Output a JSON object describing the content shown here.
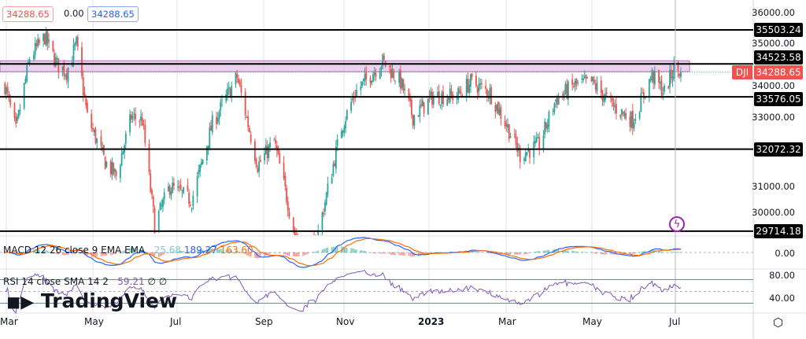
{
  "header": {
    "open_price": "34288.65",
    "change": "0.00",
    "close_price": "34288.65"
  },
  "symbol": "DJI",
  "last_price": "34288.65",
  "colors": {
    "up": "#26a69a",
    "down": "#ef5350",
    "macd": "#2962ff",
    "signal": "#ff6d00",
    "rsi": "#7e57c2",
    "zone": "#e1bee7"
  },
  "macd": {
    "label": "MACD 12 26 close 9 EMA EMA",
    "hist": "25.68",
    "macd": "189.27",
    "signal": "163.60"
  },
  "rsi": {
    "label": "RSI 14 close SMA 14 2",
    "value": "59.21",
    "ma1": "∅",
    "ma2": "∅"
  },
  "watermark": "TradingView",
  "chart_data": {
    "type": "candlestick",
    "ylim": [
      28700,
      36300
    ],
    "y_ticks": [
      "36000.00",
      "35000.00",
      "34000.00",
      "33000.00",
      "31000.00",
      "30000.00"
    ],
    "x_ticks": [
      "Mar",
      "May",
      "Jul",
      "Sep",
      "Nov",
      "2023",
      "Mar",
      "May",
      "Jul"
    ],
    "levels": [
      "35503.24",
      "34523.58",
      "33576.05",
      "32072.32",
      "29714.18"
    ],
    "resistance_zone": [
      34300,
      34523.58
    ],
    "macd_ticks": [
      "0.00"
    ],
    "rsi_ticks": [
      "80.00",
      "40.00"
    ],
    "approx_closes": [
      [
        "2022-02-28",
        33900
      ],
      [
        "2022-03-08",
        32600
      ],
      [
        "2022-03-18",
        34700
      ],
      [
        "2022-03-29",
        35300
      ],
      [
        "2022-04-07",
        34500
      ],
      [
        "2022-04-14",
        34300
      ],
      [
        "2022-04-21",
        35100
      ],
      [
        "2022-04-29",
        33000
      ],
      [
        "2022-05-12",
        31700
      ],
      [
        "2022-05-20",
        31300
      ],
      [
        "2022-05-31",
        33000
      ],
      [
        "2022-06-08",
        32900
      ],
      [
        "2022-06-17",
        29900
      ],
      [
        "2022-06-28",
        31000
      ],
      [
        "2022-07-14",
        30600
      ],
      [
        "2022-07-29",
        32800
      ],
      [
        "2022-08-16",
        34150
      ],
      [
        "2022-08-31",
        31600
      ],
      [
        "2022-09-12",
        32300
      ],
      [
        "2022-09-30",
        29100
      ],
      [
        "2022-10-12",
        29300
      ],
      [
        "2022-10-31",
        32700
      ],
      [
        "2022-11-10",
        33700
      ],
      [
        "2022-11-30",
        34600
      ],
      [
        "2022-12-13",
        34000
      ],
      [
        "2022-12-22",
        33000
      ],
      [
        "2023-01-06",
        33600
      ],
      [
        "2023-01-23",
        33600
      ],
      [
        "2023-02-02",
        34000
      ],
      [
        "2023-02-16",
        33700
      ],
      [
        "2023-03-01",
        32700
      ],
      [
        "2023-03-10",
        31900
      ],
      [
        "2023-03-24",
        32200
      ],
      [
        "2023-04-05",
        33500
      ],
      [
        "2023-04-18",
        33900
      ],
      [
        "2023-05-01",
        34000
      ],
      [
        "2023-05-17",
        33300
      ],
      [
        "2023-05-31",
        32900
      ],
      [
        "2023-06-14",
        34200
      ],
      [
        "2023-06-23",
        33700
      ],
      [
        "2023-06-30",
        34400
      ],
      [
        "2023-07-05",
        34288.65
      ]
    ]
  }
}
